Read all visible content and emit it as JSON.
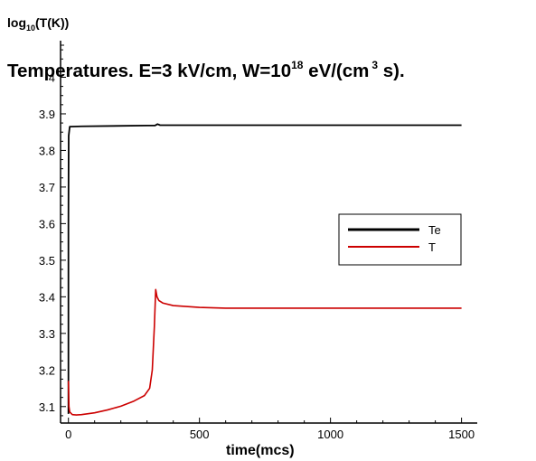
{
  "chart_data": {
    "type": "line",
    "title": {
      "pre": "Temperatures. E=3 kV/cm, W=10",
      "exponent": "18",
      "post": " eV/(cm",
      "exponent2": "3",
      "post2": " s)."
    },
    "ylabel": {
      "pre": "log",
      "sub": "10",
      "post": "(T(K))"
    },
    "xlabel": "time(mcs)",
    "xlim": [
      -30,
      1560
    ],
    "ylim": [
      3.055,
      4.1
    ],
    "xticks": [
      0,
      500,
      1000,
      1500
    ],
    "yticks": [
      3.1,
      3.2,
      3.3,
      3.4,
      3.5,
      3.6,
      3.7,
      3.8,
      3.9,
      4
    ],
    "ytick_labels": [
      "3.1",
      "3.2",
      "3.3",
      "3.4",
      "3.5",
      "3.6",
      "3.7",
      "3.8",
      "3.9",
      "4"
    ],
    "legend": {
      "placement": "right"
    },
    "series": [
      {
        "name": "Te",
        "color": "#000000",
        "x": [
          0,
          0,
          1,
          5,
          50,
          300,
          330,
          340,
          350,
          500,
          1000,
          1500
        ],
        "y": [
          3.08,
          3.6,
          3.84,
          3.865,
          3.866,
          3.868,
          3.868,
          3.872,
          3.869,
          3.869,
          3.869,
          3.869
        ]
      },
      {
        "name": "T",
        "color": "#cc0000",
        "x": [
          0,
          2,
          5,
          15,
          30,
          50,
          100,
          150,
          200,
          250,
          290,
          310,
          320,
          328,
          333,
          338,
          345,
          360,
          400,
          500,
          600,
          1000,
          1500
        ],
        "y": [
          3.17,
          3.1,
          3.085,
          3.078,
          3.077,
          3.078,
          3.083,
          3.091,
          3.101,
          3.115,
          3.13,
          3.15,
          3.2,
          3.32,
          3.42,
          3.4,
          3.39,
          3.383,
          3.376,
          3.371,
          3.369,
          3.369,
          3.369
        ]
      }
    ]
  }
}
